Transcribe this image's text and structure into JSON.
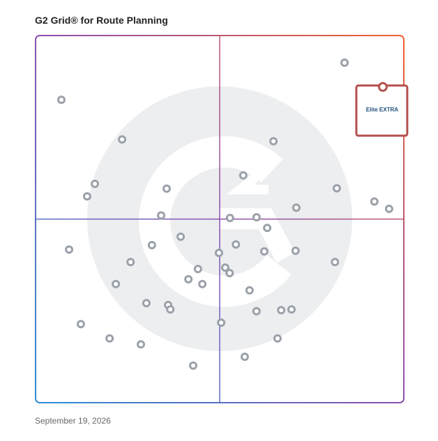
{
  "chart_data": {
    "type": "scatter",
    "title": "G2 Grid® for Route Planning",
    "date": "September 19, 2026",
    "xlim": [
      0,
      100
    ],
    "ylim": [
      0,
      100
    ],
    "quadrant_x": 50,
    "quadrant_y": 50,
    "color": "#9ba1aa",
    "x": [
      83.9,
      7.0,
      23.5,
      64.6,
      56.4,
      16.1,
      35.6,
      81.8,
      14.0,
      92.0,
      96.0,
      70.8,
      34.1,
      52.8,
      60.0,
      62.9,
      39.4,
      31.6,
      54.4,
      9.1,
      62.1,
      70.6,
      49.8,
      25.8,
      81.3,
      44.1,
      51.5,
      52.7,
      41.5,
      45.3,
      21.8,
      58.1,
      30.1,
      36.0,
      36.6,
      60.0,
      66.7,
      69.5,
      12.3,
      50.4,
      20.1,
      65.7,
      28.6,
      56.8,
      42.8
    ],
    "y": [
      92.6,
      82.5,
      71.7,
      71.2,
      61.9,
      59.6,
      58.3,
      58.4,
      56.2,
      54.8,
      52.8,
      53.1,
      51.0,
      50.3,
      50.5,
      47.6,
      45.2,
      42.9,
      43.1,
      41.7,
      41.2,
      41.4,
      40.8,
      38.3,
      38.3,
      36.4,
      36.8,
      35.3,
      33.6,
      32.3,
      32.3,
      30.6,
      27.1,
      26.6,
      25.4,
      24.9,
      25.2,
      25.4,
      21.4,
      21.8,
      17.5,
      17.5,
      15.9,
      12.5,
      10.1
    ],
    "highlight": {
      "x": 94.3,
      "y": 86.0,
      "label": "Elite EXTRA",
      "color": "#b5504f"
    }
  }
}
